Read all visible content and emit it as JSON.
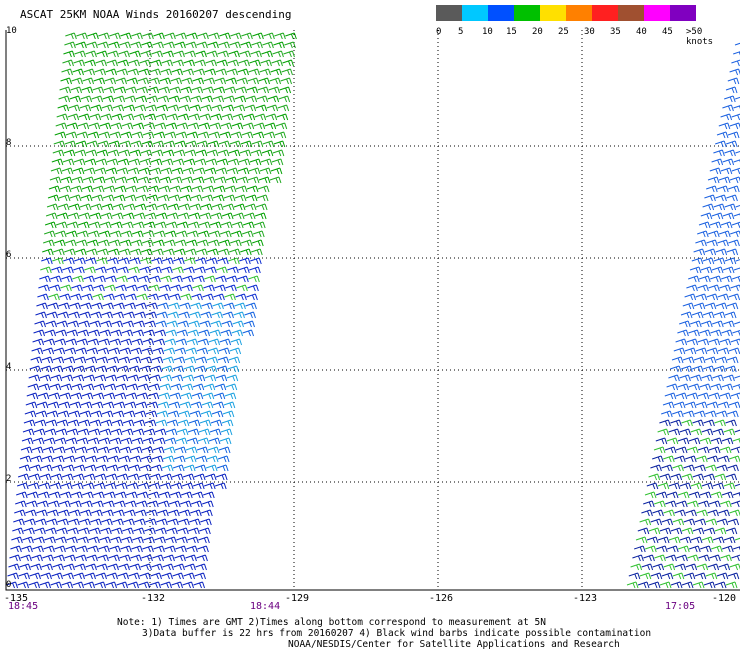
{
  "title": "ASCAT 25KM NOAA Winds 20160207 descending",
  "colorbar": {
    "colors": [
      "#5a5a5a",
      "#00c8ff",
      "#0050ff",
      "#00c000",
      "#ffe000",
      "#ff8000",
      "#ff2020",
      "#a05030",
      "#ff00ff",
      "#8000c0"
    ],
    "labels": [
      "0",
      "5",
      "10",
      "15",
      "20",
      "25",
      "30",
      "35",
      "40",
      "45",
      ">50 knots"
    ]
  },
  "lat_labels": [
    "10",
    "8",
    "6",
    "4",
    "2",
    "0"
  ],
  "lon_labels": [
    "-135",
    "-132",
    "-129",
    "-126",
    "-123",
    "-120"
  ],
  "time_labels": [
    "18:45",
    "18:44",
    "17:05"
  ],
  "notes": {
    "line1": "Note: 1) Times are GMT 2)Times along bottom correspond to measurement at 5N",
    "line2": "3)Data buffer is 22 hrs from 20160207 4) Black wind barbs indicate possible contamination",
    "line3": "NOAA/NESDIS/Center for Satellite Applications and Research"
  }
}
